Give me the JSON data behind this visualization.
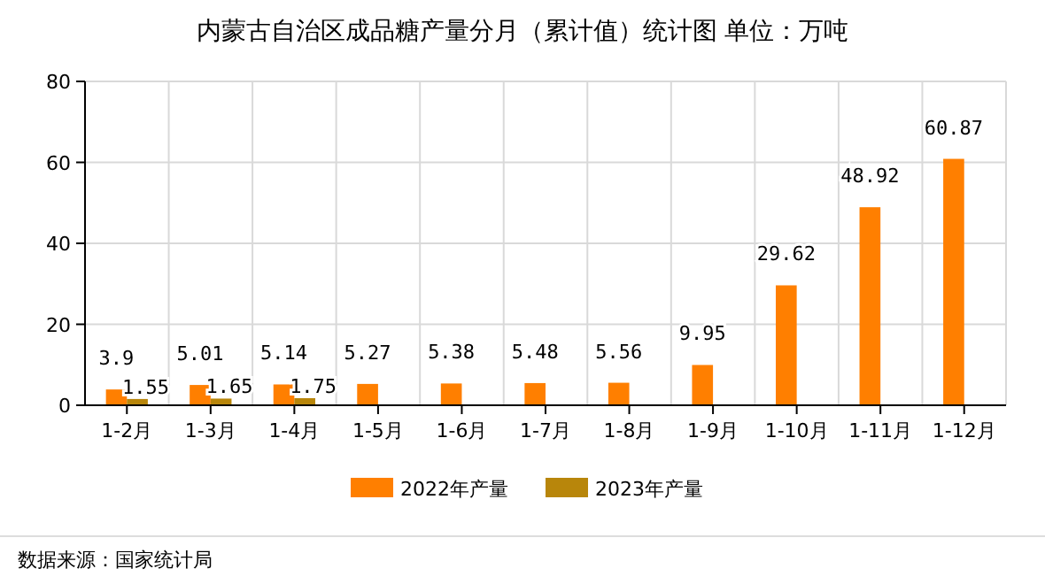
{
  "chart_data": {
    "type": "bar",
    "title": "内蒙古自治区成品糖产量分月（累计值）统计图 单位：万吨",
    "categories": [
      "1-2月",
      "1-3月",
      "1-4月",
      "1-5月",
      "1-6月",
      "1-7月",
      "1-8月",
      "1-9月",
      "1-10月",
      "1-11月",
      "1-12月"
    ],
    "series": [
      {
        "name": "2022年产量",
        "color": "#ff7f00",
        "values": [
          3.9,
          5.01,
          5.14,
          5.27,
          5.38,
          5.48,
          5.56,
          9.95,
          29.62,
          48.92,
          60.87
        ]
      },
      {
        "name": "2023年产量",
        "color": "#b8860b",
        "values": [
          1.55,
          1.65,
          1.75,
          null,
          null,
          null,
          null,
          null,
          null,
          null,
          null
        ]
      }
    ],
    "ylim": [
      0,
      80
    ],
    "yticks": [
      0,
      20,
      40,
      60,
      80
    ],
    "grid": true,
    "data_labels": true,
    "legend": "bottom",
    "annotations": [
      "数据来源：国家统计局"
    ]
  }
}
